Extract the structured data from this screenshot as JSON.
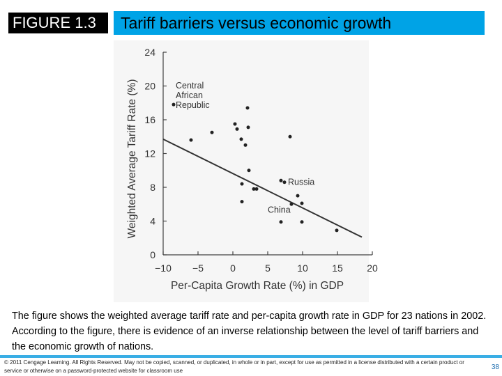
{
  "header": {
    "figure_label": "FIGURE 1.3",
    "title": "Tariff barriers versus economic growth"
  },
  "chart_data": {
    "type": "scatter",
    "title": "",
    "xlabel": "Per-Capita Growth Rate (%) in GDP",
    "ylabel": "Weighted Average Tariff Rate (%)",
    "xlim": [
      -10,
      20
    ],
    "ylim": [
      0,
      24
    ],
    "x_ticks": [
      -10,
      -5,
      0,
      5,
      10,
      15,
      20
    ],
    "y_ticks": [
      0,
      4,
      8,
      12,
      16,
      20,
      24
    ],
    "x_tick_labels": [
      "−10",
      "−5",
      "0",
      "5",
      "10",
      "15",
      "20"
    ],
    "y_tick_labels": [
      "0",
      "4",
      "8",
      "12",
      "16",
      "20",
      "24"
    ],
    "grid": false,
    "points": [
      {
        "x": -8.5,
        "y": 17.8
      },
      {
        "x": -6.0,
        "y": 13.6
      },
      {
        "x": -3.0,
        "y": 14.5
      },
      {
        "x": 0.3,
        "y": 15.5
      },
      {
        "x": 0.6,
        "y": 14.9
      },
      {
        "x": 1.2,
        "y": 13.7
      },
      {
        "x": 2.1,
        "y": 17.4
      },
      {
        "x": 2.2,
        "y": 15.1
      },
      {
        "x": 1.8,
        "y": 13.0
      },
      {
        "x": 2.3,
        "y": 10.0
      },
      {
        "x": 1.3,
        "y": 8.4
      },
      {
        "x": 3.0,
        "y": 7.8
      },
      {
        "x": 3.4,
        "y": 7.8
      },
      {
        "x": 1.3,
        "y": 6.3
      },
      {
        "x": 6.9,
        "y": 8.8
      },
      {
        "x": 7.4,
        "y": 8.6
      },
      {
        "x": 8.2,
        "y": 14.0
      },
      {
        "x": 9.3,
        "y": 7.0
      },
      {
        "x": 8.4,
        "y": 6.0
      },
      {
        "x": 9.9,
        "y": 6.1
      },
      {
        "x": 6.9,
        "y": 3.9
      },
      {
        "x": 9.9,
        "y": 3.9
      },
      {
        "x": 14.9,
        "y": 2.9
      }
    ],
    "trend_line": {
      "x": [
        -10,
        18.5
      ],
      "y": [
        13.7,
        2.1
      ]
    },
    "annotations": [
      {
        "lines": [
          "Central",
          "African",
          "Republic"
        ],
        "x": -8.2,
        "y": 19.7,
        "anchor": "start"
      },
      {
        "lines": [
          "Russia"
        ],
        "x": 7.9,
        "y": 8.3,
        "anchor": "start"
      },
      {
        "lines": [
          "China"
        ],
        "x": 5.0,
        "y": 5.0,
        "anchor": "start"
      }
    ]
  },
  "caption": "The figure shows the weighted average tariff rate and per-capita growth rate in GDP for 23 nations in 2002. According to the figure, there is evidence of an inverse relationship between the level of tariff barriers and the economic growth of nations.",
  "footer": {
    "copyright": "© 2011 Cengage Learning. All Rights Reserved. May not be copied, scanned, or duplicated, in whole or in part, except for use as permitted in a license distributed with a certain product or service or otherwise on a password-protected website for classroom use",
    "page_number": "38"
  }
}
